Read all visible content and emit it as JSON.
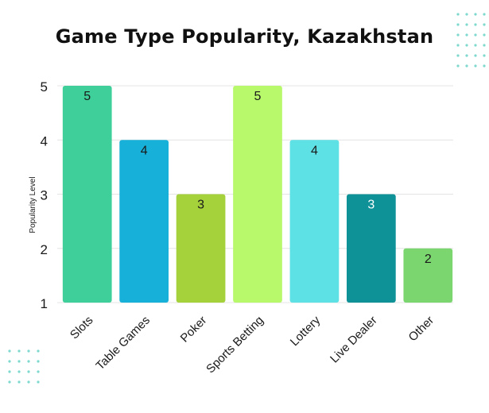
{
  "chart_data": {
    "type": "bar",
    "title": "Game Type Popularity, Kazakhstan",
    "xlabel": "",
    "ylabel": "Popularity Level",
    "categories": [
      "Slots",
      "Table Games",
      "Poker",
      "Sports Betting",
      "Lottery",
      "Live Dealer",
      "Other"
    ],
    "values": [
      5,
      4,
      3,
      5,
      4,
      3,
      2
    ],
    "data_labels": [
      "5",
      "4",
      "3",
      "5",
      "4",
      "3",
      "2"
    ],
    "bar_colors": [
      "#3ecf9a",
      "#17b0d8",
      "#a5d13a",
      "#b8f86b",
      "#5ee1e5",
      "#0f9297",
      "#7cd670"
    ],
    "label_colors": [
      "#1a1a1a",
      "#1a1a1a",
      "#1a1a1a",
      "#1a1a1a",
      "#1a1a1a",
      "#ffffff",
      "#1a1a1a"
    ],
    "ylim": [
      1,
      5
    ],
    "yticks": [
      "1",
      "2",
      "3",
      "4",
      "5"
    ],
    "grid": true,
    "legend": "none"
  },
  "colors": {
    "grid": "#e4e4e4",
    "dots": "#7fd9cf",
    "text": "#1a1a1a"
  }
}
